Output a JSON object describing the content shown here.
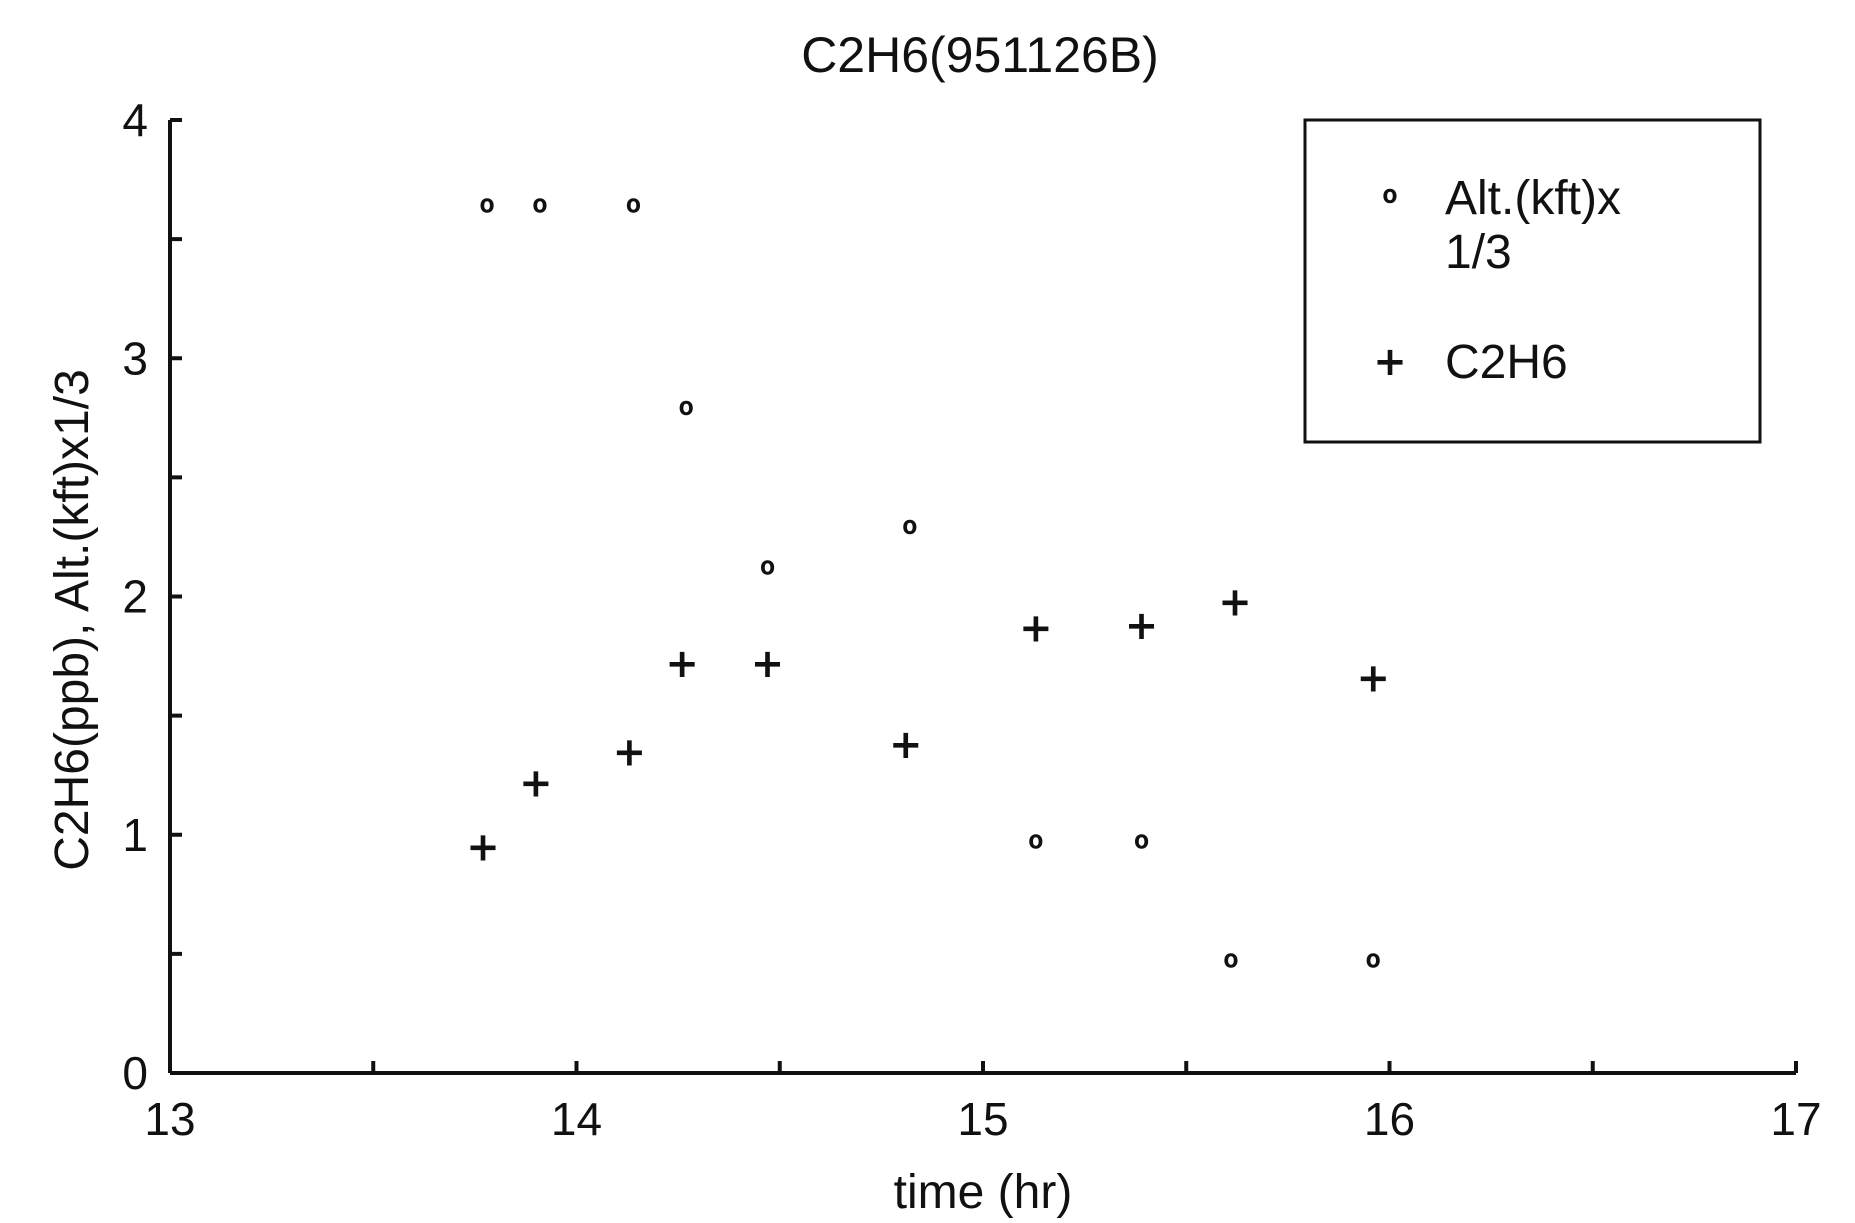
{
  "chart_data": {
    "type": "scatter",
    "title": "C2H6(951126B)",
    "xlabel": "time (hr)",
    "ylabel": "C2H6(ppb), Alt.(kft)x1/3",
    "xlim": [
      13,
      17
    ],
    "ylim": [
      0,
      4
    ],
    "xticks": [
      13,
      14,
      15,
      16,
      17
    ],
    "yticks": [
      0,
      1,
      2,
      3,
      4
    ],
    "grid": false,
    "legend_position": "top-right",
    "series": [
      {
        "name": "Alt.(kft)x 1/3",
        "legend_lines": [
          "Alt.(kft)x",
          "1/3"
        ],
        "marker": "o",
        "x": [
          13.78,
          13.91,
          14.14,
          14.27,
          14.47,
          14.82,
          15.13,
          15.39,
          15.61,
          15.96
        ],
        "y": [
          3.65,
          3.65,
          3.65,
          2.8,
          2.13,
          2.3,
          0.98,
          0.98,
          0.48,
          0.48
        ]
      },
      {
        "name": "C2H6",
        "legend_lines": [
          "C2H6"
        ],
        "marker": "+",
        "x": [
          13.77,
          13.9,
          14.13,
          14.26,
          14.47,
          14.81,
          15.13,
          15.39,
          15.62,
          15.96
        ],
        "y": [
          0.95,
          1.22,
          1.35,
          1.72,
          1.72,
          1.38,
          1.87,
          1.88,
          1.98,
          1.66
        ]
      }
    ]
  }
}
